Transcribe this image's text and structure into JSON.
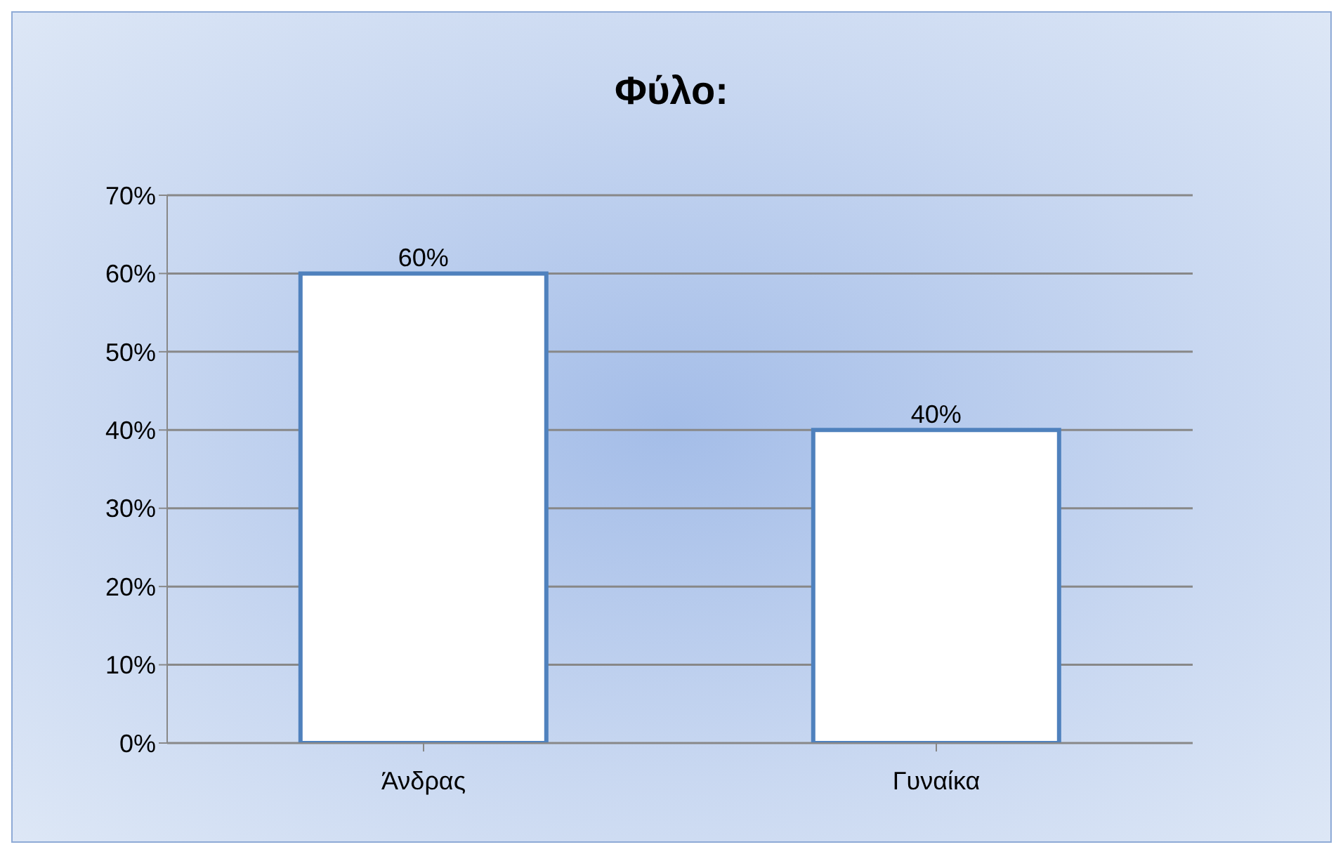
{
  "chart_data": {
    "type": "bar",
    "title": "Φύλο:",
    "categories": [
      "Άνδρας",
      "Γυναίκα"
    ],
    "values": [
      60,
      40
    ],
    "color": "#ffffff",
    "value_labels": [
      "60%",
      "40%"
    ],
    "ylim": [
      0,
      70
    ],
    "yticks": [
      {
        "value": 0,
        "label": "0%"
      },
      {
        "value": 10,
        "label": "10%"
      },
      {
        "value": 20,
        "label": "20%"
      },
      {
        "value": 30,
        "label": "30%"
      },
      {
        "value": 40,
        "label": "40%"
      },
      {
        "value": 50,
        "label": "50%"
      },
      {
        "value": 60,
        "label": "60%"
      },
      {
        "value": 70,
        "label": "70%"
      }
    ],
    "grid": "y"
  }
}
